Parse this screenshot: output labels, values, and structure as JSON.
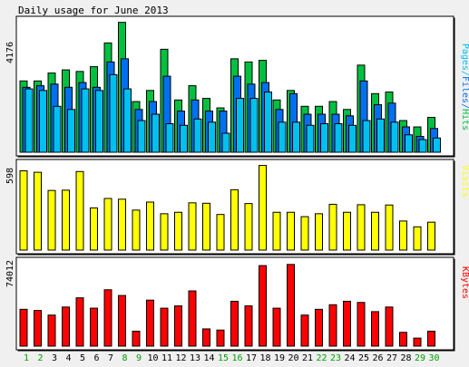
{
  "chart_data": {
    "type": "bar",
    "title": "Daily usage for June 2013",
    "days": [
      "1",
      "2",
      "3",
      "4",
      "5",
      "6",
      "7",
      "8",
      "9",
      "10",
      "11",
      "12",
      "13",
      "14",
      "15",
      "16",
      "17",
      "18",
      "19",
      "20",
      "21",
      "22",
      "23",
      "24",
      "25",
      "26",
      "27",
      "28",
      "29",
      "30"
    ],
    "weekend_days": [
      "1",
      "2",
      "8",
      "9",
      "15",
      "16",
      "22",
      "23",
      "29",
      "30"
    ],
    "colors": {
      "hits": "#00c040",
      "files": "#0070f0",
      "pages": "#00c0f0",
      "visits": "#ffff00",
      "kbytes": "#ff0000",
      "weekday_label": "#000000",
      "weekend_label": "#00a000"
    },
    "panels": [
      {
        "id": "hits",
        "max_label": "4176",
        "ymax": 4176,
        "legend": [
          {
            "text": "Pages",
            "color": "#00c0f0"
          },
          {
            "text": "Files",
            "color": "#0070f0"
          },
          {
            "text": "Hits",
            "color": "#00c040"
          }
        ],
        "series": [
          {
            "name": "Hits",
            "values": [
              2250,
              2250,
              2500,
              2600,
              2550,
              2700,
              3450,
              4100,
              1600,
              1950,
              3250,
              1650,
              2100,
              1700,
              1400,
              2950,
              2850,
              2900,
              1650,
              1950,
              1450,
              1450,
              1600,
              1350,
              2750,
              1850,
              1900,
              1000,
              800,
              1100
            ]
          },
          {
            "name": "Files",
            "values": [
              2050,
              2100,
              2150,
              2050,
              2200,
              2050,
              2850,
              2950,
              1350,
              1600,
              2400,
              1300,
              1650,
              1300,
              1300,
              2400,
              2150,
              2200,
              1350,
              1850,
              1200,
              1200,
              1200,
              1150,
              2250,
              1500,
              1550,
              800,
              500,
              750
            ]
          },
          {
            "name": "Pages",
            "values": [
              2000,
              1950,
              1450,
              1350,
              2000,
              1950,
              2450,
              2000,
              1000,
              1200,
              900,
              850,
              1050,
              950,
              600,
              1700,
              1700,
              1900,
              950,
              950,
              850,
              900,
              900,
              850,
              1000,
              1050,
              950,
              550,
              400,
              450
            ]
          }
        ]
      },
      {
        "id": "visits",
        "max_label": "598",
        "ymax": 598,
        "legend": [
          {
            "text": "Visits",
            "color": "#ffff00"
          }
        ],
        "series": [
          {
            "name": "Visits",
            "values": [
              545,
              535,
              410,
              412,
              540,
              290,
              355,
              350,
              275,
              330,
              250,
              260,
              325,
              322,
              245,
              415,
              320,
              582,
              260,
              260,
              230,
              250,
              315,
              260,
              312,
              260,
              310,
              200,
              160,
              192
            ]
          }
        ]
      },
      {
        "id": "kbytes",
        "max_label": "74012",
        "ymax": 74012,
        "legend": [
          {
            "text": "KBytes",
            "color": "#ff0000"
          }
        ],
        "series": [
          {
            "name": "KBytes",
            "values": [
              32000,
              31000,
              27000,
              34000,
              42000,
              33000,
              49000,
              44000,
              13000,
              40000,
              33000,
              35000,
              48000,
              15000,
              14000,
              39000,
              35000,
              70000,
              33000,
              71000,
              27000,
              32000,
              36000,
              39000,
              38000,
              30000,
              34000,
              12000,
              7000,
              13000
            ]
          }
        ]
      }
    ]
  }
}
